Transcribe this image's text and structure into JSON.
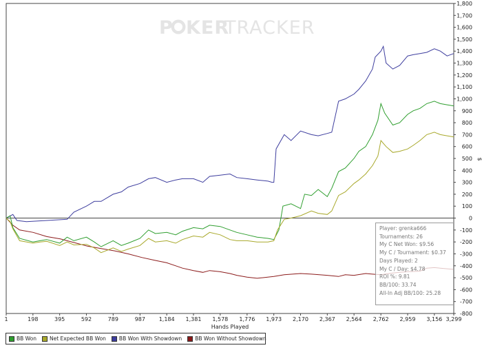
{
  "chart_data": {
    "type": "line",
    "watermark": {
      "part1": "P",
      "part2": "KER",
      "part3": "TRACKER"
    },
    "xlabel": "Hands Played",
    "ylabel": "$",
    "xlim": [
      1,
      3299
    ],
    "ylim": [
      -800,
      1800
    ],
    "x_ticks": [
      1,
      198,
      395,
      592,
      789,
      987,
      1184,
      1381,
      1578,
      1776,
      1973,
      2170,
      2367,
      2564,
      2762,
      2959,
      3156,
      3299
    ],
    "x_tick_labels": [
      "1",
      "198",
      "395",
      "592",
      "789",
      "987",
      "1,184",
      "1,381",
      "1,578",
      "1,776",
      "1,973",
      "2,170",
      "2,367",
      "2,564",
      "2,762",
      "2,959",
      "3,156",
      "3,299"
    ],
    "y_ticks": [
      -800,
      -700,
      -600,
      -500,
      -400,
      -300,
      -200,
      -100,
      0,
      100,
      200,
      300,
      400,
      500,
      600,
      700,
      800,
      900,
      1000,
      1100,
      1200,
      1300,
      1400,
      1500,
      1600,
      1700,
      1800
    ],
    "y_tick_labels": [
      "-800",
      "-700",
      "-600",
      "-500",
      "-400",
      "-300",
      "-200",
      "-100",
      "0",
      "100",
      "200",
      "300",
      "400",
      "500",
      "600",
      "700",
      "800",
      "900",
      "1,000",
      "1,100",
      "1,200",
      "1,300",
      "1,400",
      "1,500",
      "1,600",
      "1,700",
      "1,800"
    ],
    "legend_position": "bottom-left",
    "grid": false,
    "series": [
      {
        "name": "BB Won Without Showdown",
        "color": "#8b1a1a",
        "points": [
          [
            1,
            0
          ],
          [
            50,
            -60
          ],
          [
            100,
            -100
          ],
          [
            200,
            -120
          ],
          [
            300,
            -155
          ],
          [
            400,
            -175
          ],
          [
            500,
            -205
          ],
          [
            600,
            -235
          ],
          [
            700,
            -255
          ],
          [
            800,
            -275
          ],
          [
            900,
            -300
          ],
          [
            1000,
            -330
          ],
          [
            1100,
            -355
          ],
          [
            1184,
            -375
          ],
          [
            1250,
            -400
          ],
          [
            1300,
            -420
          ],
          [
            1381,
            -440
          ],
          [
            1450,
            -455
          ],
          [
            1500,
            -440
          ],
          [
            1578,
            -450
          ],
          [
            1650,
            -465
          ],
          [
            1700,
            -480
          ],
          [
            1776,
            -495
          ],
          [
            1850,
            -505
          ],
          [
            1973,
            -490
          ],
          [
            2050,
            -475
          ],
          [
            2170,
            -465
          ],
          [
            2250,
            -470
          ],
          [
            2367,
            -480
          ],
          [
            2450,
            -490
          ],
          [
            2500,
            -475
          ],
          [
            2564,
            -480
          ],
          [
            2650,
            -465
          ],
          [
            2700,
            -470
          ],
          [
            2762,
            -475
          ],
          [
            2850,
            -460
          ],
          [
            2900,
            -455
          ],
          [
            2959,
            -450
          ],
          [
            3050,
            -445
          ],
          [
            3100,
            -420
          ],
          [
            3156,
            -415
          ],
          [
            3200,
            -420
          ],
          [
            3299,
            -430
          ]
        ]
      },
      {
        "name": "BB Won With Showdown",
        "color": "#3d3d9e",
        "points": [
          [
            1,
            0
          ],
          [
            50,
            30
          ],
          [
            80,
            -20
          ],
          [
            150,
            -30
          ],
          [
            300,
            -20
          ],
          [
            450,
            -10
          ],
          [
            500,
            50
          ],
          [
            592,
            100
          ],
          [
            650,
            140
          ],
          [
            700,
            140
          ],
          [
            789,
            200
          ],
          [
            850,
            220
          ],
          [
            900,
            260
          ],
          [
            987,
            290
          ],
          [
            1050,
            330
          ],
          [
            1100,
            340
          ],
          [
            1184,
            300
          ],
          [
            1250,
            320
          ],
          [
            1300,
            330
          ],
          [
            1381,
            330
          ],
          [
            1450,
            300
          ],
          [
            1500,
            350
          ],
          [
            1578,
            360
          ],
          [
            1650,
            370
          ],
          [
            1700,
            340
          ],
          [
            1776,
            330
          ],
          [
            1850,
            320
          ],
          [
            1930,
            310
          ],
          [
            1960,
            300
          ],
          [
            1973,
            300
          ],
          [
            1990,
            580
          ],
          [
            2050,
            700
          ],
          [
            2100,
            650
          ],
          [
            2170,
            730
          ],
          [
            2250,
            700
          ],
          [
            2300,
            690
          ],
          [
            2367,
            710
          ],
          [
            2400,
            720
          ],
          [
            2450,
            980
          ],
          [
            2500,
            1000
          ],
          [
            2564,
            1040
          ],
          [
            2600,
            1080
          ],
          [
            2650,
            1150
          ],
          [
            2700,
            1250
          ],
          [
            2720,
            1350
          ],
          [
            2762,
            1400
          ],
          [
            2780,
            1440
          ],
          [
            2800,
            1300
          ],
          [
            2850,
            1250
          ],
          [
            2900,
            1280
          ],
          [
            2959,
            1360
          ],
          [
            3000,
            1370
          ],
          [
            3050,
            1380
          ],
          [
            3100,
            1390
          ],
          [
            3156,
            1420
          ],
          [
            3200,
            1400
          ],
          [
            3250,
            1360
          ],
          [
            3299,
            1380
          ]
        ]
      },
      {
        "name": "BB Won",
        "color": "#2e9e2e",
        "points": [
          [
            1,
            0
          ],
          [
            30,
            20
          ],
          [
            50,
            -80
          ],
          [
            100,
            -170
          ],
          [
            198,
            -200
          ],
          [
            250,
            -190
          ],
          [
            300,
            -180
          ],
          [
            395,
            -210
          ],
          [
            450,
            -160
          ],
          [
            500,
            -190
          ],
          [
            592,
            -160
          ],
          [
            650,
            -200
          ],
          [
            700,
            -240
          ],
          [
            789,
            -190
          ],
          [
            850,
            -230
          ],
          [
            900,
            -210
          ],
          [
            987,
            -170
          ],
          [
            1050,
            -100
          ],
          [
            1100,
            -130
          ],
          [
            1184,
            -120
          ],
          [
            1250,
            -140
          ],
          [
            1300,
            -110
          ],
          [
            1381,
            -80
          ],
          [
            1450,
            -90
          ],
          [
            1500,
            -60
          ],
          [
            1578,
            -70
          ],
          [
            1650,
            -100
          ],
          [
            1700,
            -120
          ],
          [
            1776,
            -140
          ],
          [
            1850,
            -160
          ],
          [
            1930,
            -170
          ],
          [
            1973,
            -180
          ],
          [
            2010,
            -100
          ],
          [
            2040,
            100
          ],
          [
            2100,
            120
          ],
          [
            2170,
            80
          ],
          [
            2200,
            200
          ],
          [
            2250,
            190
          ],
          [
            2300,
            240
          ],
          [
            2367,
            180
          ],
          [
            2400,
            250
          ],
          [
            2450,
            390
          ],
          [
            2500,
            420
          ],
          [
            2564,
            500
          ],
          [
            2600,
            560
          ],
          [
            2650,
            600
          ],
          [
            2700,
            700
          ],
          [
            2740,
            820
          ],
          [
            2762,
            960
          ],
          [
            2790,
            880
          ],
          [
            2850,
            780
          ],
          [
            2900,
            800
          ],
          [
            2959,
            870
          ],
          [
            3000,
            900
          ],
          [
            3050,
            920
          ],
          [
            3100,
            960
          ],
          [
            3156,
            980
          ],
          [
            3200,
            960
          ],
          [
            3250,
            950
          ],
          [
            3299,
            940
          ]
        ]
      },
      {
        "name": "Net Expected BB Won",
        "color": "#a8a82a",
        "points": [
          [
            1,
            0
          ],
          [
            30,
            -30
          ],
          [
            50,
            -90
          ],
          [
            100,
            -190
          ],
          [
            198,
            -210
          ],
          [
            250,
            -200
          ],
          [
            300,
            -195
          ],
          [
            395,
            -230
          ],
          [
            450,
            -200
          ],
          [
            500,
            -225
          ],
          [
            592,
            -220
          ],
          [
            650,
            -250
          ],
          [
            700,
            -290
          ],
          [
            789,
            -250
          ],
          [
            850,
            -280
          ],
          [
            900,
            -260
          ],
          [
            987,
            -230
          ],
          [
            1050,
            -170
          ],
          [
            1100,
            -200
          ],
          [
            1184,
            -190
          ],
          [
            1250,
            -210
          ],
          [
            1300,
            -180
          ],
          [
            1381,
            -150
          ],
          [
            1450,
            -160
          ],
          [
            1500,
            -120
          ],
          [
            1578,
            -140
          ],
          [
            1650,
            -180
          ],
          [
            1700,
            -190
          ],
          [
            1776,
            -190
          ],
          [
            1850,
            -200
          ],
          [
            1930,
            -200
          ],
          [
            1973,
            -190
          ],
          [
            2000,
            -100
          ],
          [
            2050,
            -10
          ],
          [
            2100,
            0
          ],
          [
            2170,
            20
          ],
          [
            2250,
            60
          ],
          [
            2300,
            40
          ],
          [
            2367,
            30
          ],
          [
            2400,
            60
          ],
          [
            2450,
            190
          ],
          [
            2500,
            220
          ],
          [
            2564,
            290
          ],
          [
            2600,
            320
          ],
          [
            2650,
            370
          ],
          [
            2700,
            440
          ],
          [
            2740,
            520
          ],
          [
            2762,
            650
          ],
          [
            2800,
            600
          ],
          [
            2850,
            550
          ],
          [
            2900,
            560
          ],
          [
            2959,
            580
          ],
          [
            3000,
            610
          ],
          [
            3050,
            650
          ],
          [
            3100,
            700
          ],
          [
            3156,
            720
          ],
          [
            3200,
            700
          ],
          [
            3250,
            690
          ],
          [
            3299,
            680
          ]
        ]
      }
    ]
  },
  "stats": {
    "player": "Player: grenka666",
    "tournaments": "Tournaments: 26",
    "net_won": "My C Net Won: $9.56",
    "per_tournament": "My C / Tournament: $0.37",
    "days_played": "Days Played: 2",
    "per_day": "My C / Day: $4.78",
    "roi": "ROI %: 9.81",
    "bb100": "BB/100: 33.74",
    "allin_bb100": "All-In Adj BB/100: 25.28"
  },
  "legend": {
    "items": [
      {
        "label": "BB Won",
        "color": "#2e9e2e"
      },
      {
        "label": "Net Expected BB Won",
        "color": "#a8a82a"
      },
      {
        "label": "BB Won With Showdown",
        "color": "#3d3d9e"
      },
      {
        "label": "BB Won Without Showdown",
        "color": "#8b1a1a"
      }
    ]
  }
}
